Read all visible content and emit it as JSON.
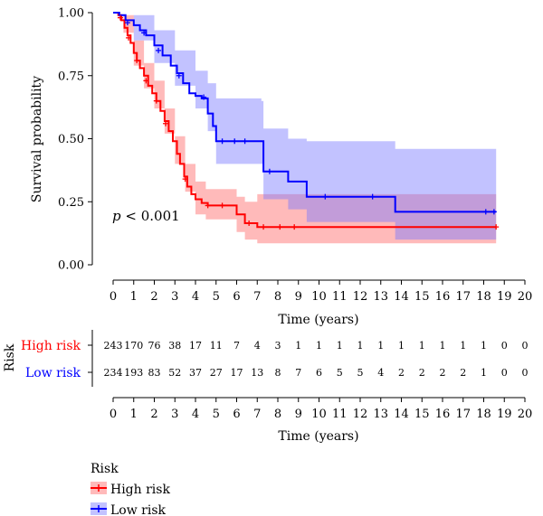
{
  "chart_data": {
    "type": "line",
    "subtype": "kaplan-meier",
    "title": "",
    "xlabel": "Time (years)",
    "ylabel": "Survival probability",
    "xlim": [
      0,
      20
    ],
    "ylim": [
      0,
      1
    ],
    "x_ticks": [
      "0",
      "1",
      "2",
      "3",
      "4",
      "5",
      "6",
      "7",
      "8",
      "9",
      "10",
      "11",
      "12",
      "13",
      "14",
      "15",
      "16",
      "17",
      "18",
      "19",
      "20"
    ],
    "y_ticks": [
      "0.00",
      "0.25",
      "0.50",
      "0.75",
      "1.00"
    ],
    "grid": false,
    "annotation": {
      "italic": "p",
      "text": " < 0.001"
    },
    "series": [
      {
        "name": "High risk",
        "color": "#ff0000",
        "band_color": "#ff6666",
        "steps": [
          [
            0,
            1.0
          ],
          [
            0.25,
            0.99
          ],
          [
            0.4,
            0.97
          ],
          [
            0.55,
            0.94
          ],
          [
            0.7,
            0.91
          ],
          [
            0.85,
            0.88
          ],
          [
            1.0,
            0.84
          ],
          [
            1.15,
            0.81
          ],
          [
            1.3,
            0.78
          ],
          [
            1.5,
            0.75
          ],
          [
            1.7,
            0.71
          ],
          [
            1.9,
            0.68
          ],
          [
            2.1,
            0.65
          ],
          [
            2.3,
            0.61
          ],
          [
            2.5,
            0.57
          ],
          [
            2.7,
            0.53
          ],
          [
            2.9,
            0.49
          ],
          [
            3.1,
            0.44
          ],
          [
            3.25,
            0.4
          ],
          [
            3.45,
            0.35
          ],
          [
            3.6,
            0.31
          ],
          [
            3.8,
            0.28
          ],
          [
            4.0,
            0.26
          ],
          [
            4.3,
            0.245
          ],
          [
            4.6,
            0.235
          ],
          [
            5.0,
            0.235
          ],
          [
            5.7,
            0.235
          ],
          [
            6.0,
            0.2
          ],
          [
            6.4,
            0.165
          ],
          [
            7.0,
            0.15
          ],
          [
            18.6,
            0.15
          ]
        ],
        "lower": [
          [
            0,
            1.0
          ],
          [
            0.5,
            0.92
          ],
          [
            1.0,
            0.79
          ],
          [
            1.5,
            0.7
          ],
          [
            2.0,
            0.62
          ],
          [
            2.5,
            0.52
          ],
          [
            3.0,
            0.4
          ],
          [
            3.5,
            0.29
          ],
          [
            4.0,
            0.2
          ],
          [
            4.5,
            0.18
          ],
          [
            5.7,
            0.18
          ],
          [
            6.0,
            0.13
          ],
          [
            6.4,
            0.1
          ],
          [
            7.0,
            0.085
          ],
          [
            18.6,
            0.085
          ]
        ],
        "upper": [
          [
            0,
            1.0
          ],
          [
            0.5,
            0.99
          ],
          [
            1.0,
            0.89
          ],
          [
            1.5,
            0.8
          ],
          [
            2.0,
            0.73
          ],
          [
            2.5,
            0.62
          ],
          [
            3.0,
            0.51
          ],
          [
            3.5,
            0.4
          ],
          [
            4.0,
            0.33
          ],
          [
            4.5,
            0.3
          ],
          [
            5.7,
            0.3
          ],
          [
            6.0,
            0.27
          ],
          [
            6.4,
            0.25
          ],
          [
            7.0,
            0.28
          ],
          [
            18.6,
            0.28
          ]
        ],
        "censors": [
          [
            0.35,
            0.98
          ],
          [
            0.75,
            0.9
          ],
          [
            1.15,
            0.81
          ],
          [
            1.6,
            0.73
          ],
          [
            2.1,
            0.65
          ],
          [
            2.55,
            0.56
          ],
          [
            3.5,
            0.34
          ],
          [
            4.6,
            0.235
          ],
          [
            5.3,
            0.235
          ],
          [
            6.6,
            0.165
          ],
          [
            7.3,
            0.15
          ],
          [
            8.1,
            0.15
          ],
          [
            8.8,
            0.15
          ],
          [
            18.6,
            0.15
          ]
        ],
        "at_risk": [
          243,
          170,
          76,
          38,
          17,
          11,
          7,
          4,
          3,
          1,
          1,
          1,
          1,
          1,
          1,
          1,
          1,
          1,
          1,
          0,
          0
        ]
      },
      {
        "name": "Low risk",
        "color": "#0000ff",
        "band_color": "#7777ff",
        "steps": [
          [
            0,
            1.0
          ],
          [
            0.3,
            0.99
          ],
          [
            0.6,
            0.97
          ],
          [
            1.0,
            0.95
          ],
          [
            1.3,
            0.93
          ],
          [
            1.6,
            0.91
          ],
          [
            2.0,
            0.87
          ],
          [
            2.4,
            0.83
          ],
          [
            2.8,
            0.79
          ],
          [
            3.1,
            0.76
          ],
          [
            3.4,
            0.72
          ],
          [
            3.7,
            0.68
          ],
          [
            4.0,
            0.67
          ],
          [
            4.3,
            0.66
          ],
          [
            4.6,
            0.6
          ],
          [
            4.85,
            0.55
          ],
          [
            5.0,
            0.49
          ],
          [
            7.2,
            0.49
          ],
          [
            7.3,
            0.37
          ],
          [
            8.2,
            0.37
          ],
          [
            8.5,
            0.33
          ],
          [
            9.3,
            0.33
          ],
          [
            9.4,
            0.27
          ],
          [
            13.6,
            0.27
          ],
          [
            13.7,
            0.21
          ],
          [
            18.6,
            0.21
          ]
        ],
        "lower": [
          [
            0,
            1.0
          ],
          [
            1.0,
            0.89
          ],
          [
            2.0,
            0.8
          ],
          [
            3.0,
            0.71
          ],
          [
            4.0,
            0.62
          ],
          [
            4.6,
            0.53
          ],
          [
            5.0,
            0.4
          ],
          [
            7.2,
            0.4
          ],
          [
            7.3,
            0.26
          ],
          [
            8.5,
            0.22
          ],
          [
            9.4,
            0.17
          ],
          [
            13.7,
            0.1
          ],
          [
            18.6,
            0.1
          ]
        ],
        "upper": [
          [
            0,
            1.0
          ],
          [
            1.0,
            0.99
          ],
          [
            2.0,
            0.93
          ],
          [
            3.0,
            0.85
          ],
          [
            4.0,
            0.77
          ],
          [
            4.6,
            0.72
          ],
          [
            5.0,
            0.66
          ],
          [
            7.2,
            0.65
          ],
          [
            7.3,
            0.54
          ],
          [
            8.5,
            0.5
          ],
          [
            9.4,
            0.49
          ],
          [
            13.7,
            0.46
          ],
          [
            18.6,
            0.46
          ]
        ],
        "censors": [
          [
            0.7,
            0.96
          ],
          [
            1.5,
            0.92
          ],
          [
            2.2,
            0.85
          ],
          [
            3.2,
            0.75
          ],
          [
            4.4,
            0.665
          ],
          [
            5.3,
            0.49
          ],
          [
            5.9,
            0.49
          ],
          [
            6.4,
            0.49
          ],
          [
            7.6,
            0.37
          ],
          [
            10.3,
            0.27
          ],
          [
            12.6,
            0.27
          ],
          [
            18.1,
            0.21
          ],
          [
            18.5,
            0.21
          ]
        ],
        "at_risk": [
          234,
          193,
          83,
          52,
          37,
          27,
          17,
          13,
          8,
          7,
          6,
          5,
          5,
          4,
          2,
          2,
          2,
          2,
          1,
          0,
          0
        ]
      }
    ]
  },
  "risk_table": {
    "strata_title": "Risk",
    "xlabel": "Time (years)",
    "rows": [
      "High risk",
      "Low risk"
    ]
  },
  "legend": {
    "title": "Risk",
    "items": [
      "High risk",
      "Low risk"
    ]
  }
}
